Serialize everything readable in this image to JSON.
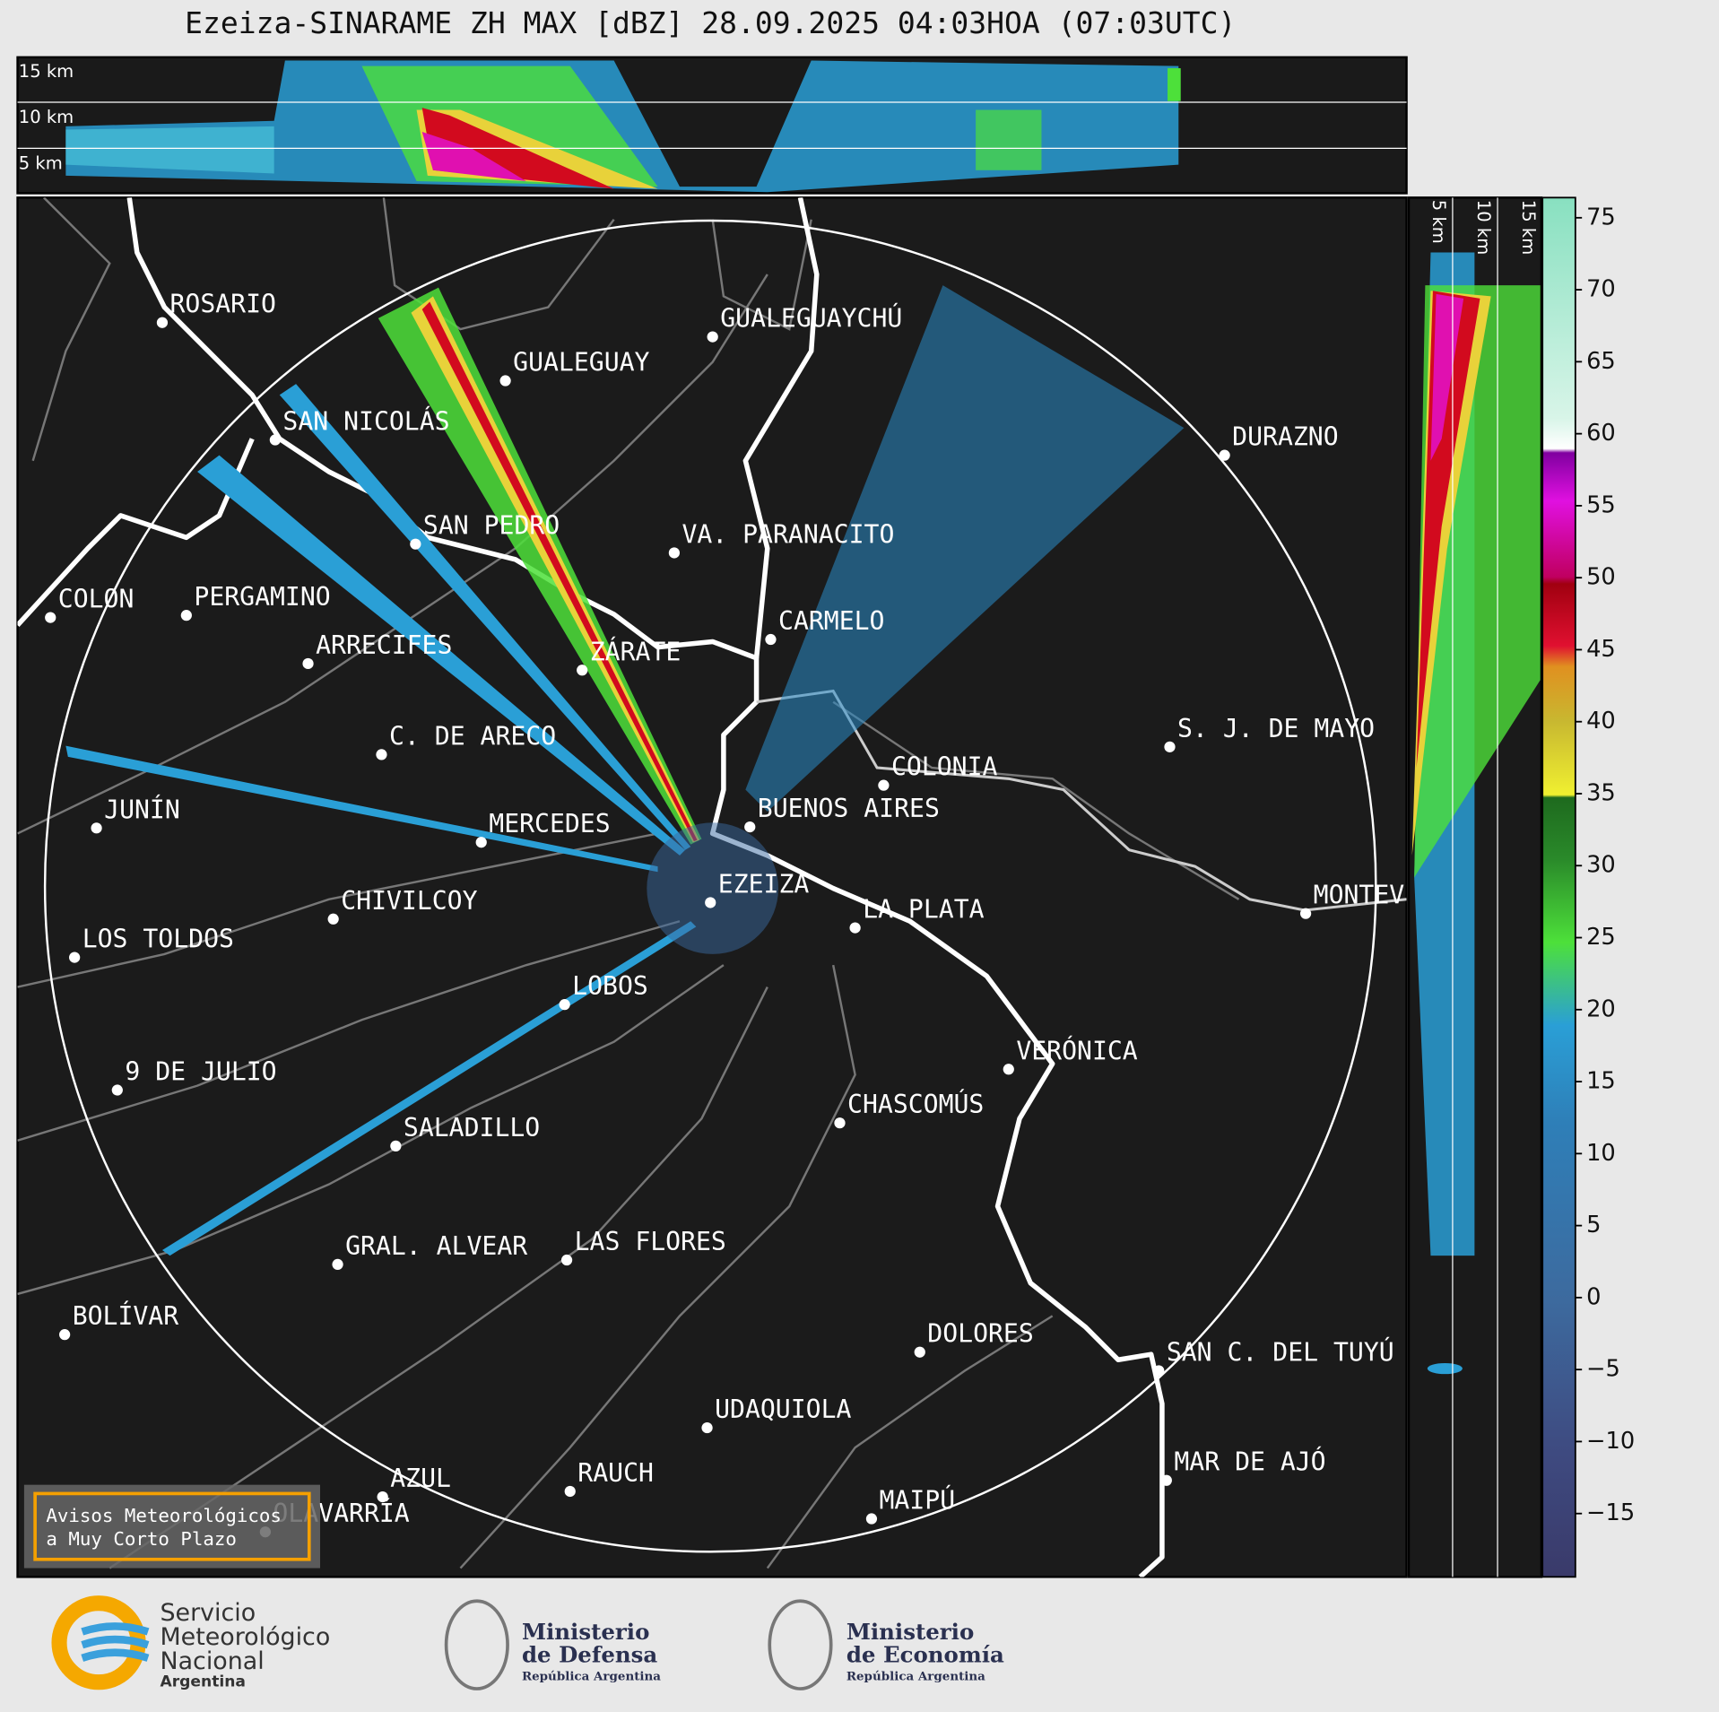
{
  "title": "Ezeiza-SINARAME ZH MAX [dBZ] 28.09.2025 04:03HOA (07:03UTC)",
  "top_panel_labels": [
    "15 km",
    "10 km",
    "5 km"
  ],
  "side_panel_labels": [
    "5 km",
    "10 km",
    "15 km"
  ],
  "cities": [
    "ROSARIO",
    "GUALEGUAYCHÚ",
    "GUALEGUAY",
    "SAN NICOLÁS",
    "DURAZNO",
    "SAN PEDRO",
    "VA. PARANACITO",
    "COLON",
    "PERGAMINO",
    "CARMELO",
    "ARRECIFES",
    "ZÁRATE",
    "C. DE ARECO",
    "S. J. DE MAYO",
    "COLONIA",
    "BUENOS AIRES",
    "JUNÍN",
    "MERCEDES",
    "EZEIZA",
    "MONTEVIDEO",
    "CHIVILCOY",
    "LA PLATA",
    "LOS TOLDOS",
    "LOBOS",
    "VERÓNICA",
    "9 DE JULIO",
    "CHASCOMÚS",
    "SALADILLO",
    "GRAL. ALVEAR",
    "LAS FLORES",
    "BOLÍVAR",
    "DOLORES",
    "SAN C. DEL TUYÚ",
    "UDAQUIOLA",
    "MAR DE AJÓ",
    "AZUL",
    "RAUCH",
    "OLAVARRÍA",
    "MAIPÚ"
  ],
  "warning_box": [
    "Avisos Meteorológicos",
    "a Muy Corto Plazo"
  ],
  "colorbar": {
    "clim": [
      -19.4,
      76.4
    ],
    "ticks": [
      75,
      70,
      65,
      60,
      55,
      50,
      45,
      40,
      35,
      30,
      25,
      20,
      15,
      10,
      5,
      0,
      {
        "value": -5,
        "label": "−5"
      },
      {
        "value": -10,
        "label": "−10"
      },
      {
        "value": -15,
        "label": "−15"
      }
    ]
  },
  "logos": {
    "smn": [
      "Servicio",
      "Meteorológico",
      "Nacional",
      "Argentina"
    ],
    "defensa": [
      "Ministerio",
      "de Defensa",
      "República Argentina"
    ],
    "economia": [
      "Ministerio",
      "de Economía",
      "República Argentina"
    ]
  }
}
